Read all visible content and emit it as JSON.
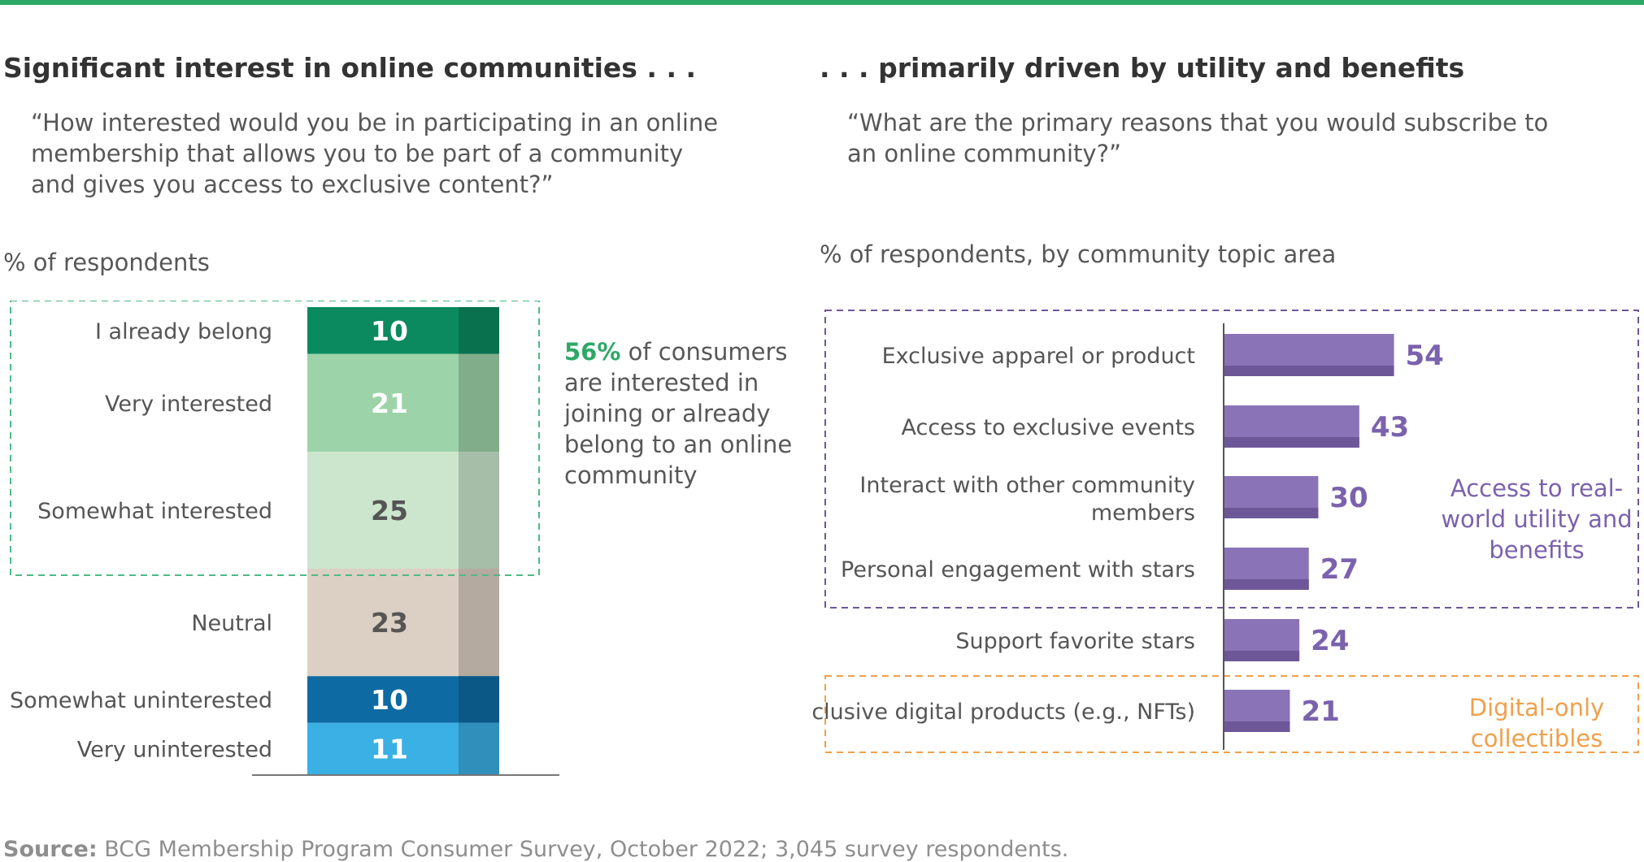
{
  "left": {
    "heading": "Significant interest in online communities . . .",
    "question": "“How interested would you be in participating in an online membership that allows you to be part of a community and gives you access to exclusive content?”",
    "unit_label": "% of respondents",
    "callout_pct": "56%",
    "callout_text": " of consumers are interested in joining or already belong to an online community"
  },
  "right": {
    "heading": ". . . primarily driven by utility and benefits",
    "question": "“What are the primary reasons that you would subscribe to an online community?”",
    "unit_label": "% of respondents, by community topic area",
    "group_utility": "Access to real-world utility and benefits",
    "group_digital": "Digital-only collectibles"
  },
  "source_label": "Source:",
  "source_text": " BCG Membership Program Consumer Survey, October 2022; 3,045 survey respondents.",
  "colors": {
    "title_accent": "#2ea866",
    "purple": "#8a73b7",
    "purple_dark": "#6e5799",
    "purple_text": "#7b62ad",
    "orange": "#f0a04b",
    "green_dash": "#4dbb84",
    "axis": "#555555"
  },
  "chart_data": [
    {
      "type": "bar",
      "stacked": true,
      "categories": [
        "I already belong",
        "Very interested",
        "Somewhat interested",
        "Neutral",
        "Somewhat uninterested",
        "Very uninterested"
      ],
      "values": [
        10,
        21,
        25,
        23,
        10,
        11
      ],
      "colors": [
        "#0b8a5f",
        "#9dd3a8",
        "#cbe6cd",
        "#dccfc3",
        "#0e6aa2",
        "#3ab0e4"
      ],
      "label_colors": [
        "#ffffff",
        "#ffffff",
        "#555555",
        "#555555",
        "#ffffff",
        "#ffffff"
      ],
      "highlight_group": [
        "I already belong",
        "Very interested",
        "Somewhat interested"
      ]
    },
    {
      "type": "bar",
      "orientation": "horizontal",
      "categories": [
        "Exclusive apparel or product",
        "Access to exclusive events",
        "Interact with other community members",
        "Personal engagement with stars",
        "Support favorite stars",
        "Exclusive digital products (e.g., NFTs)"
      ],
      "values": [
        54,
        43,
        30,
        27,
        24,
        21
      ],
      "groups": [
        {
          "name": "Access to real-world utility and benefits",
          "members": [
            "Exclusive apparel or product",
            "Access to exclusive events",
            "Interact with other community members",
            "Personal engagement with stars"
          ]
        },
        {
          "name": "Digital-only collectibles",
          "members": [
            "Exclusive digital products (e.g., NFTs)"
          ]
        }
      ]
    }
  ]
}
